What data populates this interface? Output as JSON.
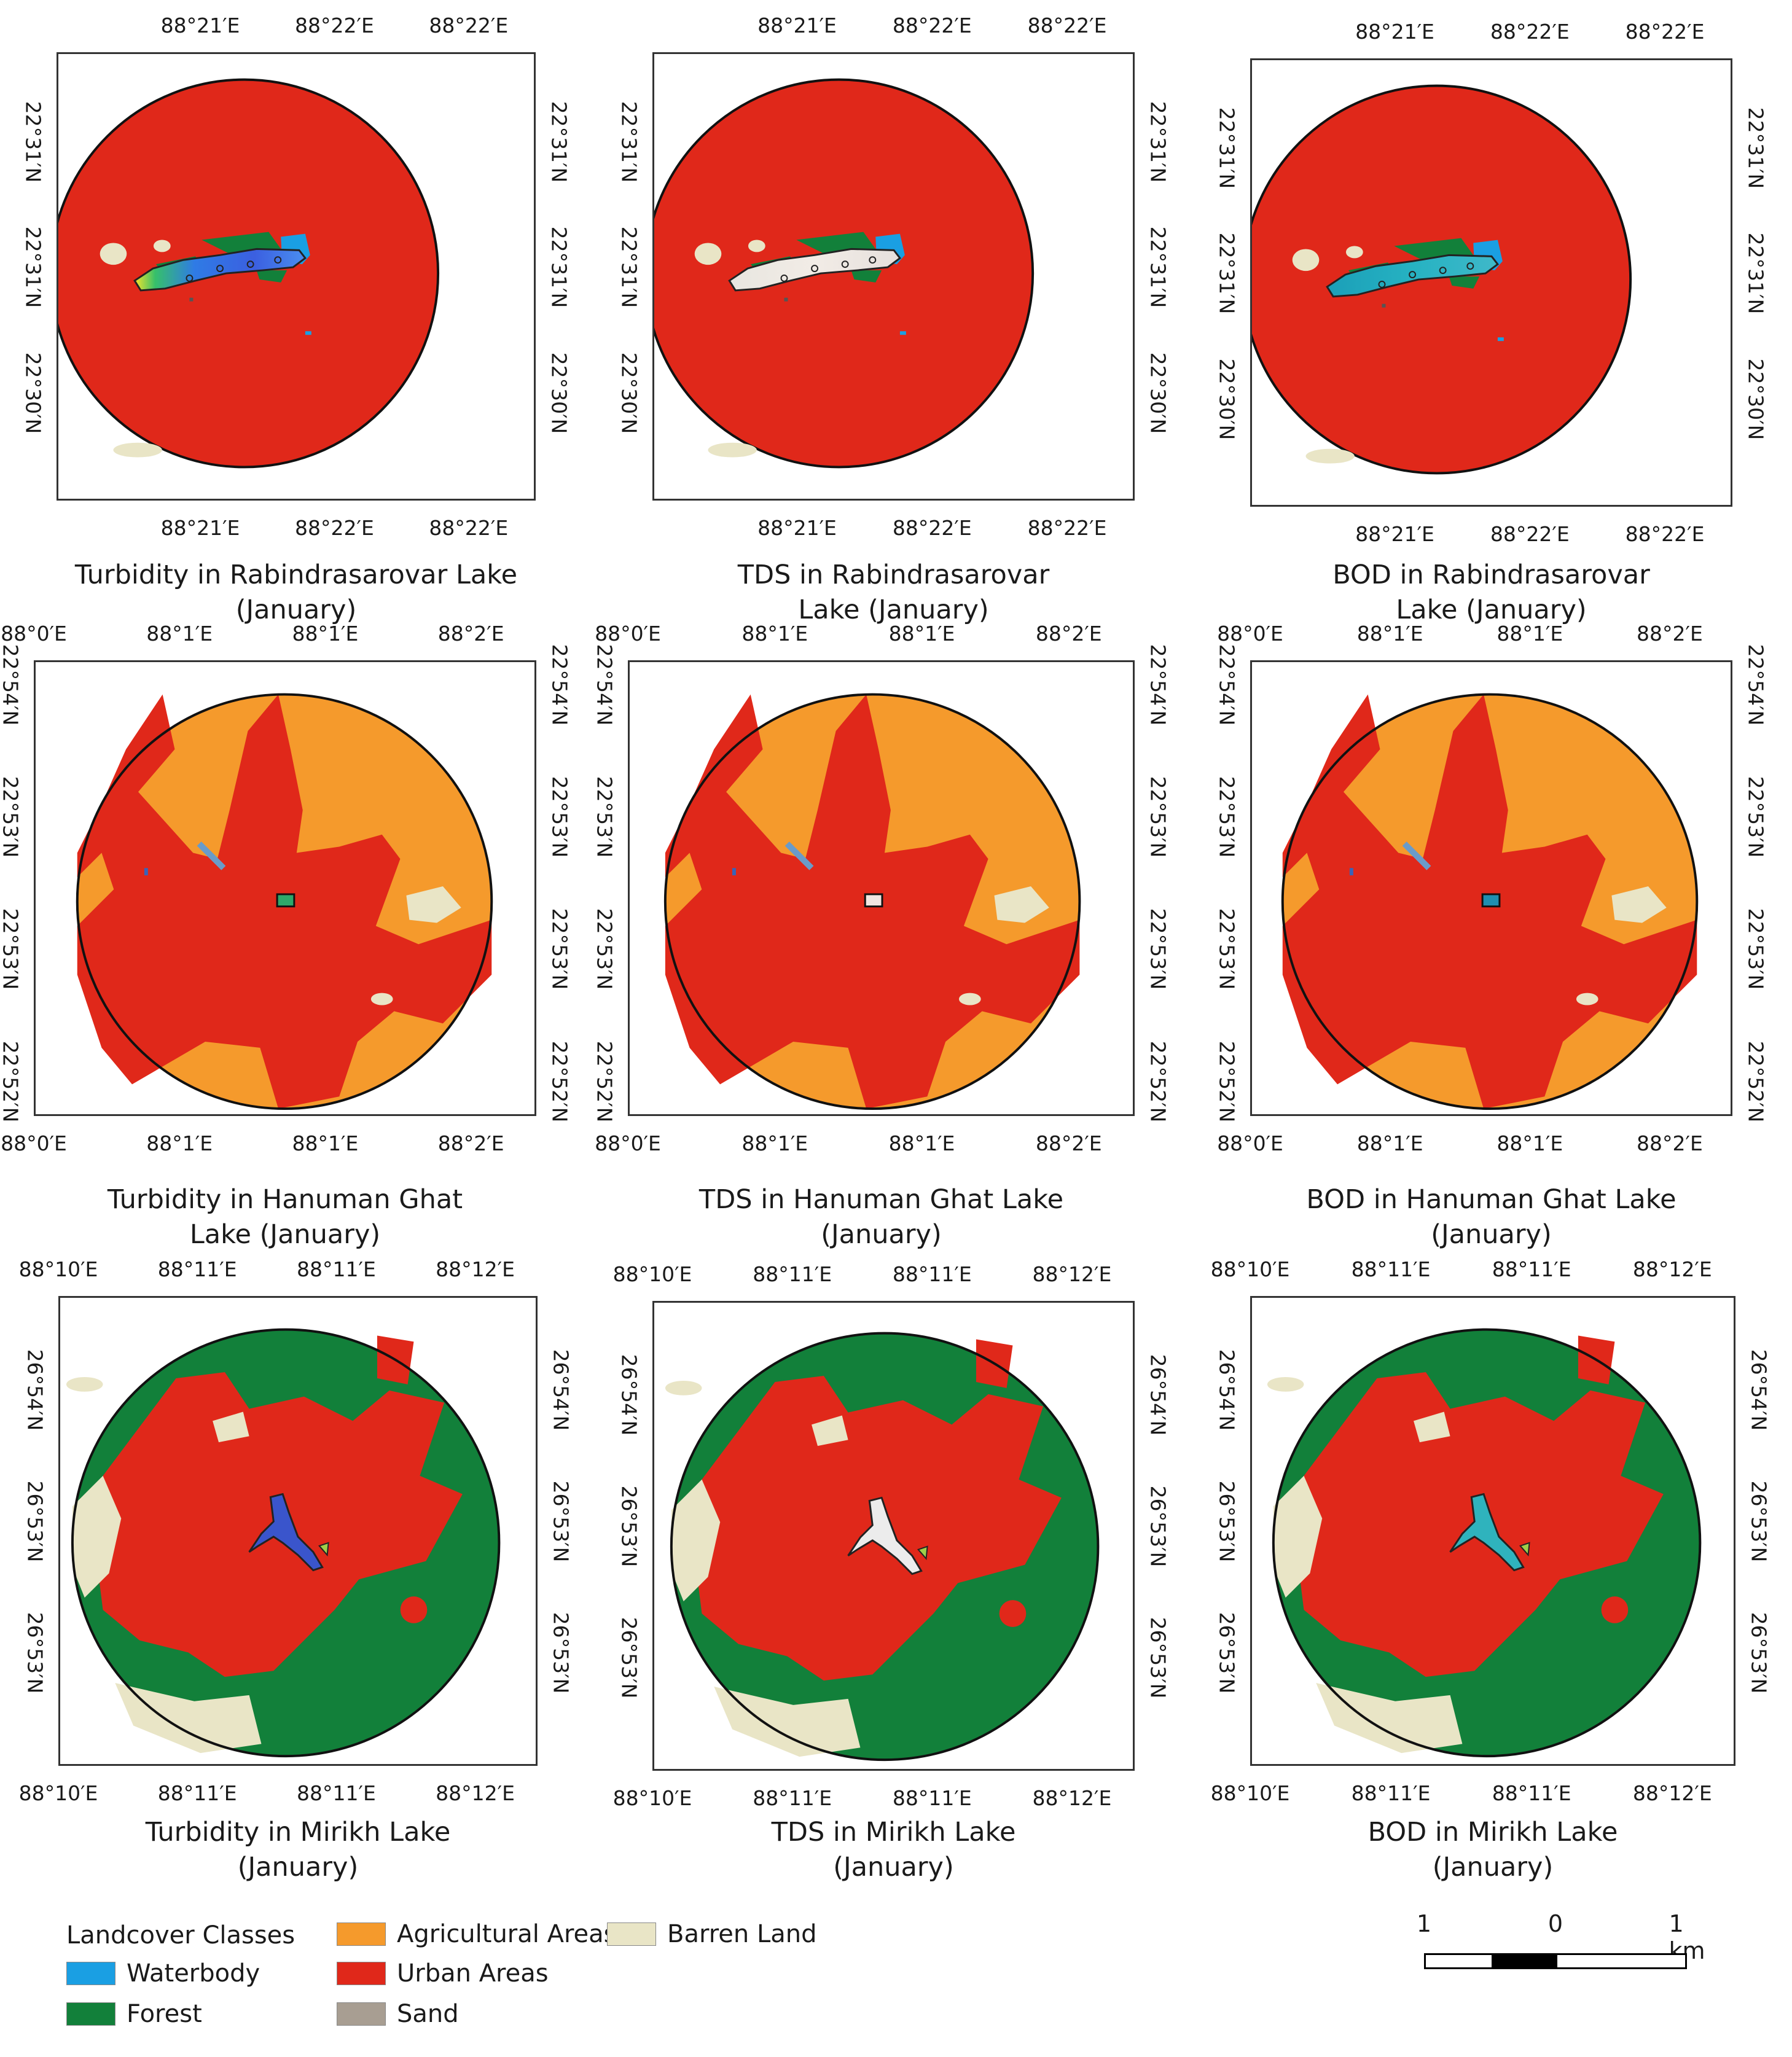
{
  "colors": {
    "waterbody": "#1a9fe3",
    "forest": "#12803a",
    "agricultural": "#f59a2c",
    "urban": "#e0281a",
    "barren": "#e9e5c6",
    "sand": "#a89e92",
    "frame": "#333333"
  },
  "panels": [
    {
      "id": "rab-turbidity",
      "caption": [
        "Turbidity in Rabindrasarovar Lake",
        "(January)"
      ],
      "top_ticks": [
        "88°21′E",
        "88°22′E",
        "88°22′E"
      ],
      "bottom_ticks": [
        "88°21′E",
        "88°22′E",
        "88°22′E"
      ],
      "left_ticks": [
        "22°31′N",
        "22°31′N",
        "22°30′N"
      ],
      "right_ticks": [
        "22°31′N",
        "22°31′N",
        "22°30′N"
      ]
    },
    {
      "id": "rab-tds",
      "caption": [
        "TDS in Rabindrasarovar",
        "Lake (January)"
      ],
      "top_ticks": [
        "88°21′E",
        "88°22′E",
        "88°22′E"
      ],
      "bottom_ticks": [
        "88°21′E",
        "88°22′E",
        "88°22′E"
      ],
      "left_ticks": [
        "22°31′N",
        "22°31′N",
        "22°30′N"
      ],
      "right_ticks": [
        "22°31′N",
        "22°31′N",
        "22°30′N"
      ]
    },
    {
      "id": "rab-bod",
      "caption": [
        "BOD in Rabindrasarovar",
        "Lake (January)"
      ],
      "top_ticks": [
        "88°21′E",
        "88°22′E",
        "88°22′E"
      ],
      "bottom_ticks": [
        "88°21′E",
        "88°22′E",
        "88°22′E"
      ],
      "left_ticks": [
        "22°31′N",
        "22°31′N",
        "22°30′N"
      ],
      "right_ticks": [
        "22°31′N",
        "22°31′N",
        "22°30′N"
      ]
    },
    {
      "id": "han-turbidity",
      "caption": [
        "Turbidity in Hanuman Ghat",
        "Lake (January)"
      ],
      "top_ticks": [
        "88°0′E",
        "88°1′E",
        "88°1′E",
        "88°2′E"
      ],
      "bottom_ticks": [
        "88°0′E",
        "88°1′E",
        "88°1′E",
        "88°2′E"
      ],
      "left_ticks": [
        "22°54′N",
        "22°53′N",
        "22°53′N",
        "22°52′N"
      ],
      "right_ticks": [
        "22°54′N",
        "22°53′N",
        "22°53′N",
        "22°52′N"
      ]
    },
    {
      "id": "han-tds",
      "caption": [
        "TDS in Hanuman Ghat Lake",
        "(January)"
      ],
      "top_ticks": [
        "88°0′E",
        "88°1′E",
        "88°1′E",
        "88°2′E"
      ],
      "bottom_ticks": [
        "88°0′E",
        "88°1′E",
        "88°1′E",
        "88°2′E"
      ],
      "left_ticks": [
        "22°54′N",
        "22°53′N",
        "22°53′N",
        "22°52′N"
      ],
      "right_ticks": [
        "22°54′N",
        "22°53′N",
        "22°53′N",
        "22°52′N"
      ]
    },
    {
      "id": "han-bod",
      "caption": [
        "BOD in Hanuman Ghat Lake",
        "(January)"
      ],
      "top_ticks": [
        "88°0′E",
        "88°1′E",
        "88°1′E",
        "88°2′E"
      ],
      "bottom_ticks": [
        "88°0′E",
        "88°1′E",
        "88°1′E",
        "88°2′E"
      ],
      "left_ticks": [
        "22°54′N",
        "22°53′N",
        "22°53′N",
        "22°52′N"
      ],
      "right_ticks": [
        "22°54′N",
        "22°53′N",
        "22°53′N",
        "22°52′N"
      ]
    },
    {
      "id": "mir-turbidity",
      "caption": [
        "Turbidity in Mirikh Lake",
        "(January)"
      ],
      "top_ticks": [
        "88°10′E",
        "88°11′E",
        "88°11′E",
        "88°12′E"
      ],
      "bottom_ticks": [
        "88°10′E",
        "88°11′E",
        "88°11′E",
        "88°12′E"
      ],
      "left_ticks": [
        "26°54′N",
        "26°53′N",
        "26°53′N"
      ],
      "right_ticks": [
        "26°54′N",
        "26°53′N",
        "26°53′N"
      ]
    },
    {
      "id": "mir-tds",
      "caption": [
        "TDS in Mirikh Lake",
        "(January)"
      ],
      "top_ticks": [
        "88°10′E",
        "88°11′E",
        "88°11′E",
        "88°12′E"
      ],
      "bottom_ticks": [
        "88°10′E",
        "88°11′E",
        "88°11′E",
        "88°12′E"
      ],
      "left_ticks": [
        "26°54′N",
        "26°53′N",
        "26°53′N"
      ],
      "right_ticks": [
        "26°54′N",
        "26°53′N",
        "26°53′N"
      ]
    },
    {
      "id": "mir-bod",
      "caption": [
        "BOD in Mirikh Lake",
        "(January)"
      ],
      "top_ticks": [
        "88°10′E",
        "88°11′E",
        "88°11′E",
        "88°12′E"
      ],
      "bottom_ticks": [
        "88°10′E",
        "88°11′E",
        "88°11′E",
        "88°12′E"
      ],
      "left_ticks": [
        "26°54′N",
        "26°53′N",
        "26°53′N"
      ],
      "right_ticks": [
        "26°54′N",
        "26°53′N",
        "26°53′N"
      ]
    }
  ],
  "legend": {
    "title": "Landcover Classes",
    "items": [
      {
        "label": "Waterbody",
        "color_key": "waterbody"
      },
      {
        "label": "Forest",
        "color_key": "forest"
      },
      {
        "label": "Agricultural Areas",
        "color_key": "agricultural"
      },
      {
        "label": "Urban Areas",
        "color_key": "urban"
      },
      {
        "label": "Sand",
        "color_key": "sand"
      },
      {
        "label": "Barren Land",
        "color_key": "barren"
      }
    ]
  },
  "scalebar": {
    "left_label": "1",
    "mid_label": "0",
    "right_label": "1 km"
  }
}
